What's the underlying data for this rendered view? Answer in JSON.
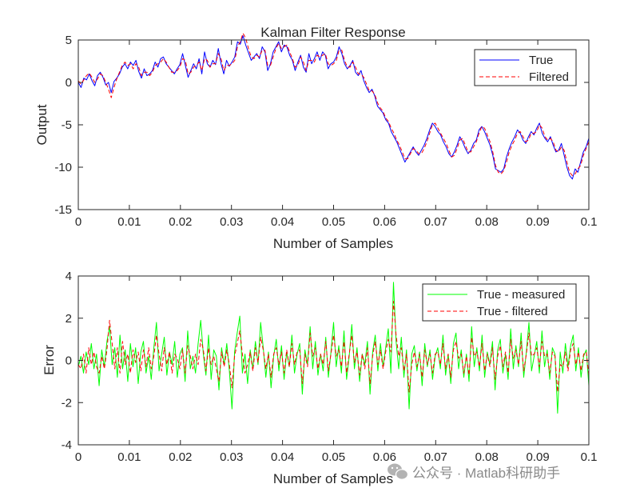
{
  "figure": {
    "watermark": "公众号 · Matlab科研助手",
    "watermark_icon": "wechat-icon"
  },
  "chart_data": [
    {
      "type": "line",
      "title": "Kalman Filter Response",
      "xlabel": "Number of Samples",
      "ylabel": "Output",
      "xlim": [
        0,
        0.1
      ],
      "ylim": [
        -15,
        5
      ],
      "xticks": [
        0,
        0.01,
        0.02,
        0.03,
        0.04,
        0.05,
        0.06,
        0.07,
        0.08,
        0.09,
        0.1
      ],
      "xtick_labels": [
        "0",
        "0.01",
        "0.02",
        "0.03",
        "0.04",
        "0.05",
        "0.06",
        "0.07",
        "0.08",
        "0.09",
        "0.1"
      ],
      "yticks": [
        -15,
        -10,
        -5,
        0,
        5
      ],
      "ytick_labels": [
        "-15",
        "-10",
        "-5",
        "0",
        "5"
      ],
      "legend_position": "top-right",
      "series": [
        {
          "name": "True",
          "color": "#0000ff",
          "dash": "solid",
          "values": [
            0,
            -0.6,
            0.5,
            0.3,
            1.0,
            0.2,
            -0.4,
            0.8,
            1.2,
            0.6,
            -0.3,
            0.0,
            -1.2,
            0.1,
            0.5,
            1.0,
            1.8,
            2.2,
            1.6,
            2.4,
            2.0,
            2.6,
            1.3,
            0.5,
            1.6,
            0.8,
            1.0,
            1.4,
            2.4,
            1.8,
            2.8,
            3.0,
            2.2,
            1.8,
            1.4,
            1.0,
            1.6,
            2.1,
            3.4,
            2.0,
            0.6,
            1.4,
            2.2,
            1.6,
            2.8,
            1.0,
            3.6,
            2.2,
            1.8,
            2.6,
            2.1,
            4.0,
            2.2,
            1.0,
            2.6,
            1.9,
            2.4,
            3.0,
            4.8,
            4.5,
            5.5,
            4.4,
            3.5,
            2.6,
            3.0,
            3.4,
            2.8,
            4.2,
            3.6,
            1.4,
            2.2,
            3.6,
            4.2,
            4.8,
            3.6,
            4.4,
            4.2,
            3.2,
            2.6,
            1.4,
            2.4,
            3.2,
            1.8,
            1.2,
            3.4,
            2.2,
            2.8,
            3.6,
            2.6,
            3.6,
            3.2,
            1.6,
            2.2,
            2.4,
            3.0,
            4.2,
            3.4,
            2.2,
            1.6,
            2.0,
            2.6,
            1.2,
            0.8,
            1.4,
            0.2,
            -0.6,
            -1.2,
            -0.8,
            -1.6,
            -2.8,
            -3.2,
            -3.6,
            -4.4,
            -4.8,
            -5.8,
            -6.4,
            -7.0,
            -7.8,
            -8.6,
            -9.4,
            -8.8,
            -8.2,
            -7.6,
            -8.2,
            -8.6,
            -8.0,
            -7.4,
            -6.6,
            -5.6,
            -4.8,
            -5.2,
            -5.8,
            -6.2,
            -7.0,
            -7.6,
            -8.4,
            -8.8,
            -8.2,
            -7.4,
            -6.4,
            -7.0,
            -7.8,
            -8.4,
            -8.0,
            -7.2,
            -6.8,
            -5.6,
            -5.2,
            -5.8,
            -6.6,
            -7.4,
            -8.6,
            -10.2,
            -10.4,
            -10.6,
            -10.2,
            -8.8,
            -7.8,
            -7.0,
            -6.4,
            -5.6,
            -6.0,
            -6.8,
            -7.2,
            -6.4,
            -5.8,
            -6.2,
            -5.4,
            -4.8,
            -6.0,
            -6.6,
            -7.0,
            -6.4,
            -7.4,
            -8.2,
            -8.0,
            -7.2,
            -8.6,
            -10.0,
            -11.0,
            -11.4,
            -10.2,
            -10.6,
            -9.4,
            -8.2,
            -7.6,
            -6.6
          ]
        },
        {
          "name": "Filtered",
          "color": "#ff0000",
          "dash": "dashed",
          "values": [
            0.2,
            -0.2,
            0.3,
            0.8,
            1.1,
            0.6,
            0.0,
            0.4,
            1.0,
            0.8,
            0.0,
            -0.8,
            -1.8,
            -0.6,
            0.4,
            1.2,
            2.0,
            2.4,
            2.0,
            2.2,
            1.6,
            2.2,
            1.8,
            0.8,
            1.2,
            1.2,
            0.8,
            1.2,
            2.0,
            2.2,
            2.4,
            2.8,
            2.4,
            1.8,
            1.2,
            1.2,
            1.4,
            1.8,
            2.8,
            2.6,
            1.0,
            1.2,
            1.8,
            2.0,
            2.4,
            1.4,
            2.8,
            2.6,
            1.8,
            2.2,
            2.2,
            3.4,
            2.8,
            1.4,
            2.0,
            2.0,
            2.2,
            2.6,
            4.2,
            4.8,
            5.8,
            5.2,
            4.0,
            3.0,
            2.8,
            3.2,
            3.0,
            3.8,
            3.8,
            2.0,
            2.0,
            3.0,
            4.0,
            4.6,
            4.0,
            4.2,
            4.4,
            3.6,
            2.8,
            1.8,
            2.0,
            3.0,
            2.4,
            1.4,
            2.6,
            2.6,
            2.4,
            3.2,
            3.0,
            3.2,
            3.4,
            2.2,
            2.0,
            2.2,
            2.6,
            3.8,
            3.8,
            2.6,
            1.8,
            1.8,
            2.4,
            1.8,
            1.0,
            1.0,
            0.6,
            -0.2,
            -1.0,
            -1.0,
            -1.4,
            -2.4,
            -3.0,
            -3.4,
            -4.2,
            -4.6,
            -5.4,
            -6.0,
            -6.8,
            -7.4,
            -8.2,
            -9.0,
            -9.0,
            -8.4,
            -7.8,
            -8.0,
            -8.4,
            -8.4,
            -7.8,
            -7.0,
            -6.0,
            -5.0,
            -4.8,
            -5.4,
            -6.0,
            -6.6,
            -7.2,
            -8.0,
            -8.8,
            -8.6,
            -7.8,
            -6.8,
            -6.6,
            -7.4,
            -8.2,
            -8.2,
            -7.6,
            -7.0,
            -6.0,
            -5.2,
            -5.4,
            -6.2,
            -7.0,
            -8.2,
            -9.8,
            -10.6,
            -10.8,
            -10.4,
            -9.4,
            -8.2,
            -7.4,
            -6.8,
            -6.0,
            -5.8,
            -6.4,
            -7.0,
            -6.8,
            -6.0,
            -6.0,
            -5.8,
            -5.0,
            -5.4,
            -6.4,
            -6.8,
            -6.6,
            -7.0,
            -8.0,
            -8.2,
            -7.6,
            -8.0,
            -9.4,
            -10.6,
            -11.0,
            -10.8,
            -10.2,
            -9.8,
            -8.6,
            -7.8,
            -7.0
          ]
        }
      ]
    },
    {
      "type": "line",
      "title": "",
      "xlabel": "Number of Samples",
      "ylabel": "Error",
      "xlim": [
        0,
        0.1
      ],
      "ylim": [
        -4,
        4
      ],
      "xticks": [
        0,
        0.01,
        0.02,
        0.03,
        0.04,
        0.05,
        0.06,
        0.07,
        0.08,
        0.09,
        0.1
      ],
      "xtick_labels": [
        "0",
        "0.01",
        "0.02",
        "0.03",
        "0.04",
        "0.05",
        "0.06",
        "0.07",
        "0.08",
        "0.09",
        "0.1"
      ],
      "yticks": [
        -4,
        -2,
        0,
        2,
        4
      ],
      "ytick_labels": [
        "-4",
        "-2",
        "0",
        "2",
        "4"
      ],
      "legend_position": "top-right",
      "series": [
        {
          "name": "True - measured",
          "color": "#00ff00",
          "dash": "solid",
          "values": [
            -0.3,
            0.2,
            -0.6,
            0.4,
            -0.2,
            0.8,
            -0.4,
            0.3,
            -1.2,
            0.5,
            -0.3,
            0.9,
            1.6,
            -0.2,
            0.6,
            -0.8,
            1.2,
            -0.4,
            0.5,
            -1.0,
            0.8,
            -0.3,
            0.6,
            -1.1,
            0.4,
            0.9,
            -0.6,
            0.2,
            -0.9,
            0.6,
            1.8,
            -0.5,
            0.3,
            1.1,
            -0.7,
            0.4,
            -0.2,
            0.9,
            -0.8,
            0.3,
            0.6,
            -1.0,
            1.4,
            -0.4,
            0.2,
            -0.6,
            0.8,
            1.9,
            0.3,
            -0.7,
            1.2,
            -0.9,
            0.5,
            0.2,
            -1.4,
            0.6,
            -0.2,
            0.8,
            -0.5,
            -2.3,
            0.4,
            1.3,
            2.1,
            -0.6,
            0.3,
            -1.1,
            0.5,
            -0.4,
            0.9,
            -0.2,
            1.8,
            0.6,
            -0.8,
            0.4,
            -1.3,
            0.2,
            1.0,
            -0.5,
            0.7,
            -0.9,
            0.4,
            -0.3,
            1.2,
            -0.6,
            0.3,
            0.8,
            -1.6,
            0.5,
            -0.2,
            1.6,
            -0.4,
            0.9,
            -0.7,
            0.3,
            -0.5,
            1.1,
            -0.8,
            0.4,
            1.8,
            -0.3,
            0.7,
            -0.6,
            1.4,
            -0.9,
            0.2,
            1.7,
            -0.4,
            0.6,
            -1.0,
            0.3,
            -0.2,
            0.9,
            -1.6,
            0.4,
            1.2,
            -0.5,
            0.8,
            -0.3,
            0.6,
            1.5,
            -0.6,
            3.7,
            0.9,
            -0.4,
            1.1,
            -0.8,
            0.5,
            -2.3,
            0.3,
            0.7,
            -0.5,
            0.4,
            -1.2,
            0.8,
            -0.3,
            0.5,
            -0.9,
            0.2,
            0.6,
            -0.4,
            1.2,
            -0.7,
            0.3,
            -1.1,
            0.8,
            1.3,
            -0.4,
            0.5,
            -0.8,
            0.3,
            -1.0,
            1.6,
            -0.3,
            0.6,
            -0.5,
            1.2,
            -0.8,
            0.4,
            -0.2,
            0.9,
            -1.4,
            0.5,
            1.0,
            -0.6,
            0.3,
            -0.9,
            1.5,
            -0.4,
            0.7,
            -0.3,
            1.3,
            -0.8,
            0.4,
            1.8,
            -0.5,
            0.2,
            0.9,
            -0.6,
            1.4,
            -0.3,
            0.5,
            -0.9,
            0.6,
            0.3,
            -2.5,
            0.4,
            -0.6,
            0.8,
            -0.3,
            0.7,
            1.2,
            -0.5,
            0.6,
            -0.8,
            0.2,
            0.5,
            -1.2
          ]
        },
        {
          "name": "True - filtered",
          "color": "#ff0000",
          "dash": "dashed",
          "values": [
            -0.2,
            -0.4,
            0.3,
            -0.6,
            0.6,
            -0.2,
            0.4,
            -0.3,
            -0.6,
            0.2,
            -0.4,
            0.5,
            1.9,
            0.8,
            -0.4,
            0.6,
            -0.6,
            0.9,
            -0.2,
            0.3,
            -0.6,
            0.5,
            -0.1,
            0.4,
            -0.5,
            0.5,
            -0.3,
            0.6,
            -0.4,
            0.2,
            1.2,
            0.3,
            -0.5,
            0.6,
            -0.2,
            0.4,
            -0.6,
            0.3,
            0.1,
            -0.4,
            0.5,
            -0.6,
            0.7,
            0.2,
            -0.4,
            0.3,
            -0.2,
            1.0,
            0.5,
            -0.5,
            0.6,
            -0.2,
            0.2,
            -0.4,
            -1.0,
            0.4,
            -0.3,
            0.5,
            -0.2,
            -1.3,
            0.2,
            0.8,
            1.4,
            0.3,
            -0.6,
            -0.2,
            0.4,
            -0.5,
            0.6,
            -0.1,
            1.1,
            0.5,
            -0.4,
            0.3,
            -0.8,
            0.3,
            0.6,
            -0.2,
            0.4,
            -0.6,
            0.5,
            -0.3,
            0.8,
            -0.2,
            0.4,
            0.5,
            -1.1,
            0.3,
            -0.3,
            1.3,
            0.2,
            0.6,
            -0.4,
            0.3,
            -0.2,
            0.9,
            -0.5,
            0.3,
            1.2,
            0.2,
            0.5,
            -0.3,
            0.9,
            -0.6,
            0.3,
            1.2,
            -0.1,
            0.4,
            -0.7,
            0.3,
            -0.4,
            0.6,
            -1.1,
            0.2,
            0.9,
            -0.2,
            0.5,
            -0.4,
            0.4,
            1.0,
            0.4,
            2.8,
            1.2,
            0.2,
            0.6,
            -0.5,
            0.3,
            -1.5,
            -0.2,
            0.4,
            -0.3,
            0.3,
            -0.8,
            0.5,
            -0.2,
            0.3,
            -0.6,
            0.3,
            0.4,
            -0.2,
            0.8,
            -0.4,
            0.3,
            -0.8,
            0.5,
            0.9,
            0.1,
            0.3,
            -0.6,
            0.2,
            -0.7,
            1.1,
            0.2,
            0.4,
            -0.3,
            0.8,
            -0.5,
            0.3,
            -0.3,
            0.6,
            -0.9,
            0.2,
            0.7,
            -0.3,
            0.4,
            -0.6,
            1.0,
            0.1,
            0.5,
            -0.2,
            0.9,
            -0.5,
            0.3,
            1.3,
            0.2,
            0.3,
            0.6,
            -0.3,
            0.9,
            0.2,
            0.3,
            -0.6,
            0.4,
            0.2,
            -1.5,
            -0.2,
            -0.3,
            0.4,
            -0.5,
            0.5,
            0.8,
            -0.2,
            0.4,
            -0.5,
            0.3,
            0.4,
            -0.7
          ]
        }
      ]
    }
  ]
}
